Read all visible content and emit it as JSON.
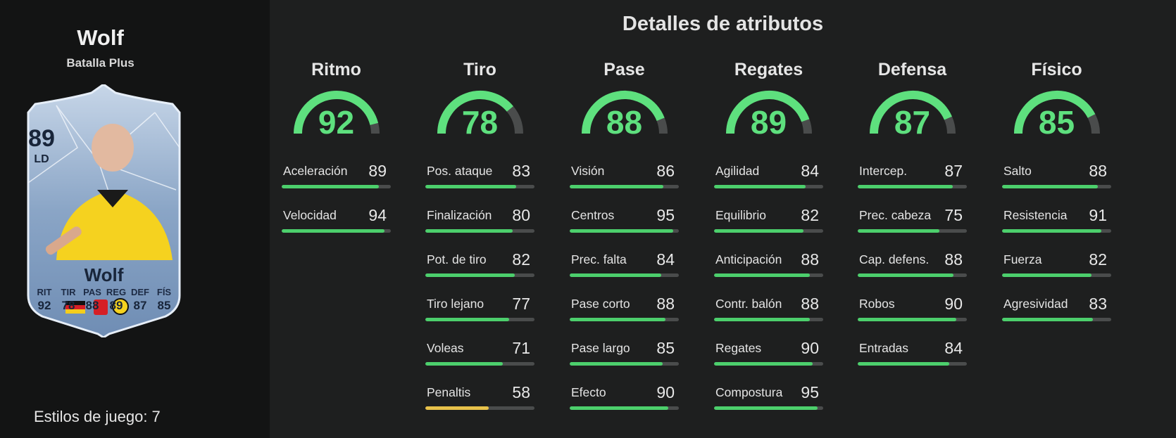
{
  "player": {
    "name": "Wolf",
    "version": "Batalla Plus",
    "rating": "89",
    "position": "LD",
    "card_name": "Wolf",
    "playstyles": "Estilos de juego: 7",
    "card_stats": [
      {
        "label": "RIT",
        "value": "92"
      },
      {
        "label": "TIR",
        "value": "78"
      },
      {
        "label": "PAS",
        "value": "88"
      },
      {
        "label": "REG",
        "value": "89"
      },
      {
        "label": "DEF",
        "value": "87"
      },
      {
        "label": "FÍS",
        "value": "85"
      }
    ]
  },
  "section_title": "Detalles de atributos",
  "colors": {
    "green": "#5ee07e",
    "bar_green": "#4ccf6c",
    "bar_yellow": "#e8c24a",
    "track": "#4a4c4c"
  },
  "categories": [
    {
      "name": "Ritmo",
      "value": 92,
      "attributes": [
        {
          "name": "Aceleración",
          "value": 89
        },
        {
          "name": "Velocidad",
          "value": 94
        }
      ]
    },
    {
      "name": "Tiro",
      "value": 78,
      "attributes": [
        {
          "name": "Pos. ataque",
          "value": 83
        },
        {
          "name": "Finalización",
          "value": 80
        },
        {
          "name": "Pot. de tiro",
          "value": 82
        },
        {
          "name": "Tiro lejano",
          "value": 77
        },
        {
          "name": "Voleas",
          "value": 71
        },
        {
          "name": "Penaltis",
          "value": 58
        }
      ]
    },
    {
      "name": "Pase",
      "value": 88,
      "attributes": [
        {
          "name": "Visión",
          "value": 86
        },
        {
          "name": "Centros",
          "value": 95
        },
        {
          "name": "Prec. falta",
          "value": 84
        },
        {
          "name": "Pase corto",
          "value": 88
        },
        {
          "name": "Pase largo",
          "value": 85
        },
        {
          "name": "Efecto",
          "value": 90
        }
      ]
    },
    {
      "name": "Regates",
      "value": 89,
      "attributes": [
        {
          "name": "Agilidad",
          "value": 84
        },
        {
          "name": "Equilibrio",
          "value": 82
        },
        {
          "name": "Anticipación",
          "value": 88
        },
        {
          "name": "Contr. balón",
          "value": 88
        },
        {
          "name": "Regates",
          "value": 90
        },
        {
          "name": "Compostura",
          "value": 95
        }
      ]
    },
    {
      "name": "Defensa",
      "value": 87,
      "attributes": [
        {
          "name": "Intercep.",
          "value": 87
        },
        {
          "name": "Prec. cabeza",
          "value": 75
        },
        {
          "name": "Cap. defens.",
          "value": 88
        },
        {
          "name": "Robos",
          "value": 90
        },
        {
          "name": "Entradas",
          "value": 84
        }
      ]
    },
    {
      "name": "Físico",
      "value": 85,
      "attributes": [
        {
          "name": "Salto",
          "value": 88
        },
        {
          "name": "Resistencia",
          "value": 91
        },
        {
          "name": "Fuerza",
          "value": 82
        },
        {
          "name": "Agresividad",
          "value": 83
        }
      ]
    }
  ]
}
